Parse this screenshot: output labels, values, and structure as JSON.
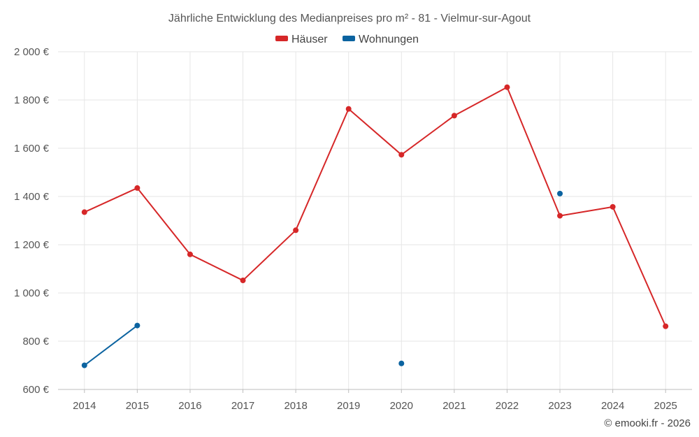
{
  "chart_data": {
    "type": "line",
    "title": "Jährliche Entwicklung des Medianpreises pro m² - 81 - Vielmur-sur-Agout",
    "categories": [
      "2014",
      "2015",
      "2016",
      "2017",
      "2018",
      "2019",
      "2020",
      "2021",
      "2022",
      "2023",
      "2024",
      "2025"
    ],
    "y_tick_values": [
      600,
      800,
      1000,
      1200,
      1400,
      1600,
      1800,
      2000
    ],
    "y_tick_labels": [
      "600 €",
      "800 €",
      "1 000 €",
      "1 200 €",
      "1 400 €",
      "1 600 €",
      "1 800 €",
      "2 000 €"
    ],
    "ylim": [
      600,
      2000
    ],
    "grid": true,
    "legend_position": "top-center",
    "series": [
      {
        "name": "Häuser",
        "color": "#d62728",
        "values": [
          1335,
          1435,
          1160,
          1052,
          1260,
          1763,
          1573,
          1735,
          1853,
          1320,
          1357,
          862
        ]
      },
      {
        "name": "Wohnungen",
        "color": "#0b63a0",
        "values": [
          700,
          865,
          null,
          null,
          null,
          null,
          708,
          null,
          null,
          1412,
          null,
          null
        ]
      }
    ]
  },
  "credit": "© emooki.fr - 2026"
}
